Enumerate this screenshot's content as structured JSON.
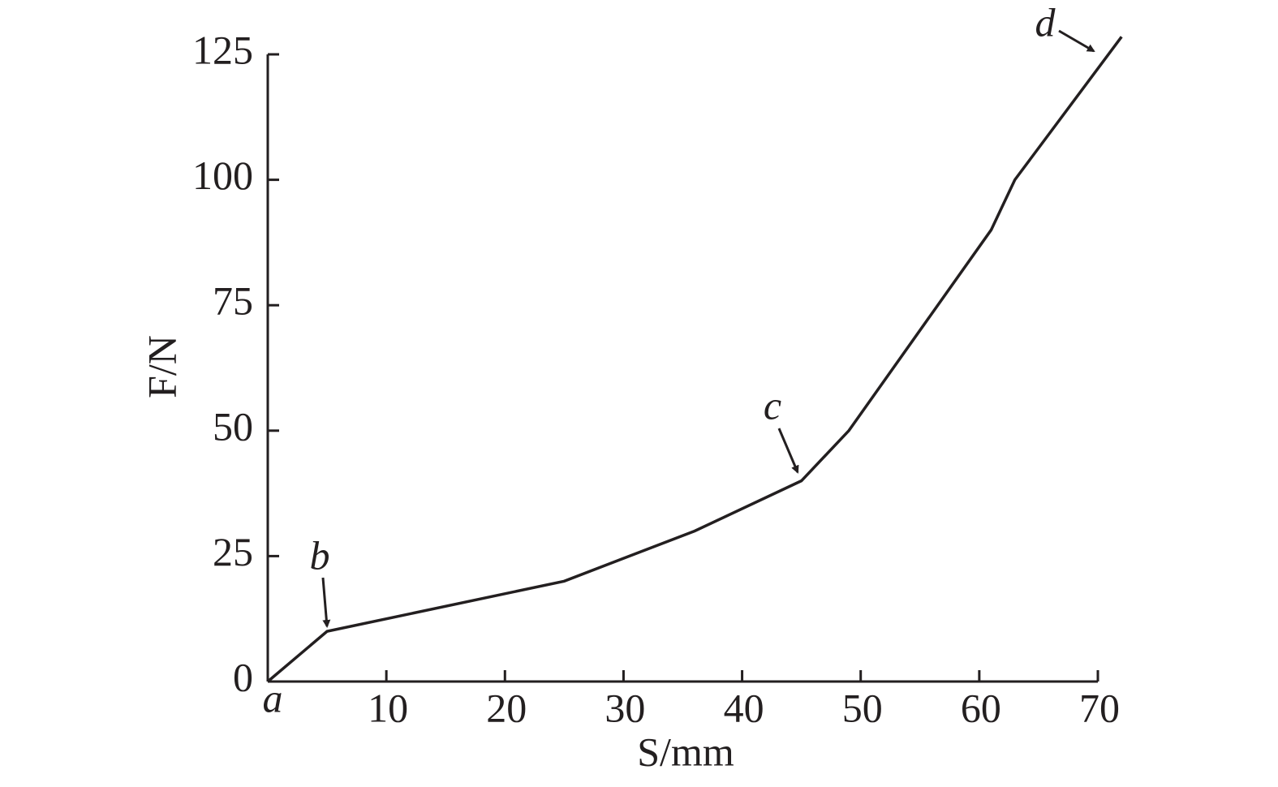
{
  "chart_data": {
    "type": "line",
    "x": [
      0,
      5,
      25,
      36,
      45,
      49,
      61,
      63,
      72
    ],
    "values": [
      0,
      10,
      20,
      30,
      40,
      50,
      90,
      100,
      128.5
    ],
    "color": "#231f20",
    "xlabel": "S/mm",
    "ylabel": "F/N",
    "xlim": [
      0,
      70
    ],
    "ylim": [
      0,
      125
    ],
    "xticks": [
      10,
      20,
      30,
      40,
      50,
      60,
      70
    ],
    "yticks": [
      0,
      25,
      50,
      75,
      100,
      125
    ],
    "grid": false,
    "annotations": [
      "a",
      "b",
      "c",
      "d"
    ]
  }
}
